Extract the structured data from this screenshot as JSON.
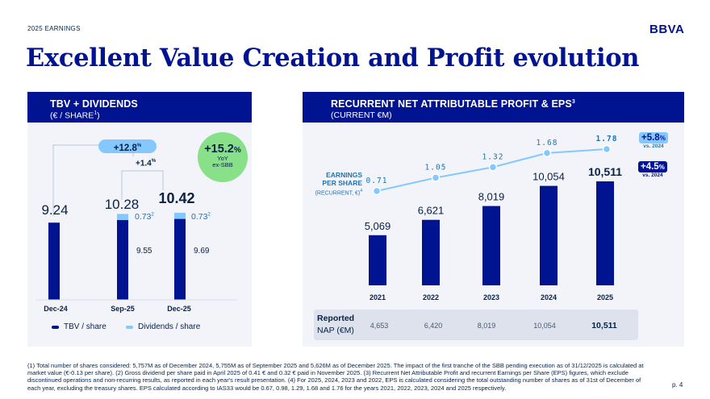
{
  "header": {
    "tag": "2025 EARNINGS",
    "logo": "BBVA"
  },
  "title": "Excellent Value Creation and Profit evolution",
  "left_panel": {
    "title": "TBV + DIVIDENDS",
    "subtitle_pre": "(€ / SHARE",
    "subtitle_sup": "1",
    "subtitle_post": ")",
    "growth_main": "+12.8",
    "growth_main_unit": "%",
    "growth_small": "+1.4",
    "growth_small_unit": "%",
    "yoy_value": "+15.2",
    "yoy_unit": "%",
    "yoy_label1": "YoY",
    "yoy_label2": "ex-SBB",
    "legend_tbv": "TBV / share",
    "legend_div": "Dividends / share",
    "colors": {
      "tbv": "#001391",
      "dividends": "#85c8ff",
      "accent_green": "#88e089"
    }
  },
  "right_panel": {
    "title_pre": "RECURRENT NET ATTRIBUTABLE PROFIT & EPS",
    "title_sup": "3",
    "subtitle": "(CURRENT €M)",
    "eps_label1": "EARNINGS",
    "eps_label2": "PER SHARE",
    "eps_label3": "(RECURRENT, €)",
    "eps_label3_sup": "4",
    "badge1_value": "+5.8",
    "badge1_unit": "%",
    "badge1_sub": "vs. 2024",
    "badge2_value": "+4.5",
    "badge2_unit": "%",
    "badge2_sub": "vs. 2024",
    "reported_label1": "Reported",
    "reported_label2": "NAP (€M)",
    "reported_values": [
      "4,653",
      "6,420",
      "8,019",
      "10,054",
      "10,511"
    ]
  },
  "chart_data": [
    {
      "type": "bar",
      "title": "TBV + DIVIDENDS (€ / SHARE)",
      "categories": [
        "Dec-24",
        "Sep-25",
        "Dec-25"
      ],
      "totals": [
        "9.24",
        "10.28",
        "10.42"
      ],
      "series": [
        {
          "name": "TBV / share",
          "values": [
            9.24,
            9.55,
            9.69
          ],
          "labels": [
            "",
            "9.55",
            "9.69"
          ]
        },
        {
          "name": "Dividends / share",
          "values": [
            0,
            0.73,
            0.73
          ],
          "labels": [
            "",
            "0.73",
            "0.73"
          ],
          "label_sup": "2"
        }
      ],
      "ylim": [
        0,
        10.42
      ]
    },
    {
      "type": "bar",
      "title": "RECURRENT NET ATTRIBUTABLE PROFIT & EPS (CURRENT €M)",
      "categories": [
        "2021",
        "2022",
        "2023",
        "2024",
        "2025"
      ],
      "series": [
        {
          "name": "Recurrent net attributable profit",
          "values": [
            5069,
            6621,
            8019,
            10054,
            10511
          ],
          "labels": [
            "5,069",
            "6,621",
            "8,019",
            "10,054",
            "10,511"
          ]
        },
        {
          "name": "Earnings per share (recurrent, €)",
          "type": "line",
          "values": [
            0.71,
            1.05,
            1.32,
            1.68,
            1.78
          ],
          "labels": [
            "0.71",
            "1.05",
            "1.32",
            "1.68",
            "1.78"
          ]
        }
      ],
      "ylim": [
        0,
        10511
      ]
    }
  ],
  "footnote": "(1) Total number of shares considered: 5,757M as of December 2024, 5,755M as of September 2025 and 5,626M as of December 2025. The impact of the first tranche of the SBB pending execution as of 31/12/2025 is calculated at market value (€-0.13 per share). (2) Gross dividend per share paid in April 2025 of 0.41 € and 0.32 € paid in November 2025. (3) Recurrent Net Attributable Profit and recurrent Earnings per Share (EPS) figures, which exclude discontinued operations and non-recurring results, as reported in each year's result presentation. (4) For 2025, 2024, 2023 and 2022, EPS is calculated considering the total outstanding number of shares as of 31st of December of each year, excluding the treasury shares. EPS calculated according to IAS33 would be 0.67, 0.98, 1.29, 1.68 and 1.76 for the years 2021, 2022, 2023, 2024 and 2025 respectively.",
  "page": "p. 4"
}
